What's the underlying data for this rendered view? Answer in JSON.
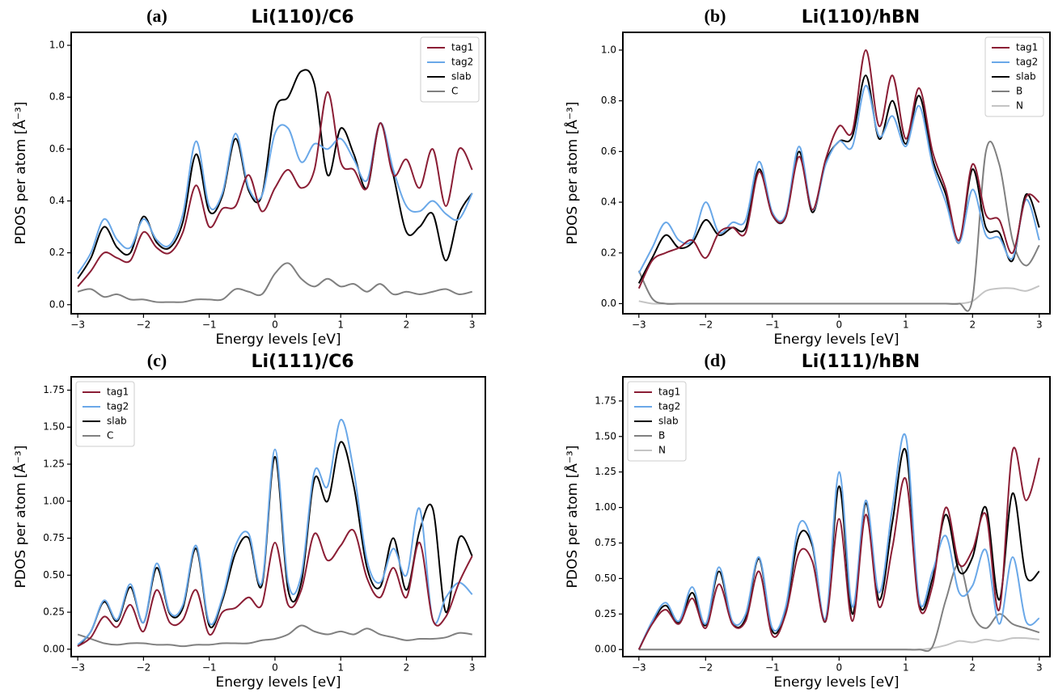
{
  "chart_data": [
    {
      "type": "line",
      "label": "(a)",
      "title": "Li(110)/C6",
      "x_label": "Energy levels [eV]",
      "y_label": "PDOS per atom [Å⁻³]",
      "legend": "upper right",
      "x": [
        -3,
        -2.8,
        -2.6,
        -2.4,
        -2.2,
        -2,
        -1.8,
        -1.6,
        -1.4,
        -1.2,
        -1,
        -0.8,
        -0.6,
        -0.4,
        -0.2,
        0,
        0.2,
        0.4,
        0.6,
        0.8,
        1,
        1.2,
        1.4,
        1.6,
        1.8,
        2,
        2.2,
        2.4,
        2.6,
        2.8,
        3
      ],
      "xlim": [
        -3.1,
        3.2
      ],
      "xticks": [
        {
          "value": -3,
          "label": "−3"
        },
        {
          "value": -2,
          "label": "−2"
        },
        {
          "value": -1,
          "label": "−1"
        },
        0,
        1,
        2,
        3
      ],
      "ylim": [
        -0.035,
        1.05
      ],
      "yticks": [
        {
          "value": 0,
          "label": "0.0"
        },
        0.2,
        0.4,
        0.6,
        0.8,
        {
          "value": 1,
          "label": "1.0"
        }
      ],
      "series": [
        {
          "name": "tag1",
          "color": "#8b1e35",
          "values": [
            0.07,
            0.13,
            0.2,
            0.18,
            0.17,
            0.28,
            0.22,
            0.2,
            0.28,
            0.46,
            0.3,
            0.37,
            0.38,
            0.5,
            0.36,
            0.45,
            0.52,
            0.45,
            0.52,
            0.82,
            0.55,
            0.52,
            0.45,
            0.7,
            0.5,
            0.56,
            0.45,
            0.6,
            0.38,
            0.6,
            0.52
          ]
        },
        {
          "name": "tag2",
          "color": "#6aa8e8",
          "values": [
            0.12,
            0.2,
            0.33,
            0.25,
            0.22,
            0.33,
            0.25,
            0.23,
            0.35,
            0.63,
            0.38,
            0.43,
            0.66,
            0.45,
            0.42,
            0.66,
            0.68,
            0.55,
            0.62,
            0.6,
            0.64,
            0.56,
            0.48,
            0.7,
            0.52,
            0.38,
            0.36,
            0.4,
            0.35,
            0.33,
            0.43
          ]
        },
        {
          "name": "slab",
          "color": "#000000",
          "values": [
            0.1,
            0.18,
            0.3,
            0.22,
            0.2,
            0.34,
            0.24,
            0.22,
            0.32,
            0.58,
            0.36,
            0.42,
            0.64,
            0.44,
            0.42,
            0.75,
            0.8,
            0.9,
            0.85,
            0.5,
            0.68,
            0.58,
            0.45,
            0.7,
            0.5,
            0.28,
            0.3,
            0.35,
            0.17,
            0.35,
            0.43
          ]
        },
        {
          "name": "C",
          "color": "#808080",
          "values": [
            0.05,
            0.06,
            0.03,
            0.04,
            0.02,
            0.02,
            0.01,
            0.01,
            0.01,
            0.02,
            0.02,
            0.02,
            0.06,
            0.05,
            0.04,
            0.12,
            0.16,
            0.1,
            0.07,
            0.1,
            0.07,
            0.08,
            0.05,
            0.08,
            0.04,
            0.05,
            0.04,
            0.05,
            0.06,
            0.04,
            0.05
          ]
        }
      ]
    },
    {
      "type": "line",
      "label": "(b)",
      "title": "Li(110)/hBN",
      "x_label": "Energy levels [eV]",
      "y_label": "PDOS per atom [Å⁻³]",
      "legend": "upper right",
      "x": [
        -3,
        -2.8,
        -2.6,
        -2.4,
        -2.2,
        -2,
        -1.8,
        -1.6,
        -1.4,
        -1.2,
        -1,
        -0.8,
        -0.6,
        -0.4,
        -0.2,
        0,
        0.2,
        0.4,
        0.6,
        0.8,
        1,
        1.2,
        1.4,
        1.6,
        1.8,
        2,
        2.2,
        2.4,
        2.6,
        2.8,
        3
      ],
      "xlim": [
        -3.24,
        3.16
      ],
      "xticks": [
        {
          "value": -3,
          "label": "−3"
        },
        {
          "value": -2,
          "label": "−2"
        },
        {
          "value": -1,
          "label": "−1"
        },
        0,
        1,
        2,
        3
      ],
      "ylim": [
        -0.04,
        1.07
      ],
      "yticks": [
        {
          "value": 0,
          "label": "0.0"
        },
        0.2,
        0.4,
        0.6,
        0.8,
        {
          "value": 1,
          "label": "1.0"
        }
      ],
      "series": [
        {
          "name": "tag1",
          "color": "#8b1e35",
          "values": [
            0.06,
            0.17,
            0.2,
            0.22,
            0.25,
            0.18,
            0.28,
            0.3,
            0.28,
            0.52,
            0.35,
            0.34,
            0.58,
            0.37,
            0.57,
            0.7,
            0.68,
            1.0,
            0.7,
            0.9,
            0.65,
            0.85,
            0.6,
            0.45,
            0.25,
            0.55,
            0.35,
            0.33,
            0.2,
            0.42,
            0.4
          ]
        },
        {
          "name": "tag2",
          "color": "#6aa8e8",
          "values": [
            0.12,
            0.22,
            0.32,
            0.25,
            0.25,
            0.4,
            0.28,
            0.32,
            0.33,
            0.56,
            0.36,
            0.35,
            0.62,
            0.37,
            0.55,
            0.64,
            0.62,
            0.86,
            0.66,
            0.74,
            0.62,
            0.78,
            0.55,
            0.4,
            0.24,
            0.45,
            0.27,
            0.26,
            0.18,
            0.41,
            0.25
          ]
        },
        {
          "name": "slab",
          "color": "#000000",
          "values": [
            0.08,
            0.18,
            0.27,
            0.22,
            0.24,
            0.33,
            0.27,
            0.3,
            0.3,
            0.53,
            0.35,
            0.34,
            0.6,
            0.36,
            0.56,
            0.64,
            0.66,
            0.9,
            0.65,
            0.8,
            0.63,
            0.82,
            0.57,
            0.43,
            0.24,
            0.53,
            0.3,
            0.28,
            0.17,
            0.43,
            0.3
          ]
        },
        {
          "name": "B",
          "color": "#808080",
          "values": [
            0.13,
            0.02,
            0,
            0,
            0,
            0,
            0,
            0,
            0,
            0,
            0,
            0,
            0,
            0,
            0,
            0,
            0,
            0,
            0,
            0,
            0,
            0,
            0,
            0,
            0,
            0.02,
            0.6,
            0.55,
            0.25,
            0.15,
            0.23
          ]
        },
        {
          "name": "N",
          "color": "#c4c4c4",
          "values": [
            0.01,
            0,
            0,
            0,
            0,
            0,
            0,
            0,
            0,
            0,
            0,
            0,
            0,
            0,
            0,
            0,
            0,
            0,
            0,
            0,
            0,
            0,
            0,
            0,
            0,
            0.01,
            0.05,
            0.06,
            0.06,
            0.05,
            0.07
          ]
        }
      ]
    },
    {
      "type": "line",
      "label": "(c)",
      "title": "Li(111)/C6",
      "x_label": "Energy levels [eV]",
      "y_label": "PDOS per atom [Å⁻³]",
      "legend": "upper left",
      "x": [
        -3,
        -2.8,
        -2.6,
        -2.4,
        -2.2,
        -2,
        -1.8,
        -1.6,
        -1.4,
        -1.2,
        -1,
        -0.8,
        -0.6,
        -0.4,
        -0.2,
        0,
        0.2,
        0.4,
        0.6,
        0.8,
        1,
        1.2,
        1.4,
        1.6,
        1.8,
        2,
        2.2,
        2.4,
        2.6,
        2.8,
        3
      ],
      "xlim": [
        -3.1,
        3.2
      ],
      "xticks": [
        {
          "value": -3,
          "label": "−3"
        },
        {
          "value": -2,
          "label": "−2"
        },
        {
          "value": -1,
          "label": "−1"
        },
        0,
        1,
        2,
        3
      ],
      "ylim": [
        -0.05,
        1.84
      ],
      "yticks": [
        {
          "value": 0,
          "label": "0.00"
        },
        0.25,
        {
          "value": 0.5,
          "label": "0.50"
        },
        0.75,
        {
          "value": 1,
          "label": "1.00"
        },
        1.25,
        {
          "value": 1.5,
          "label": "1.50"
        },
        1.75
      ],
      "series": [
        {
          "name": "tag1",
          "color": "#8b1e35",
          "values": [
            0.02,
            0.08,
            0.22,
            0.15,
            0.3,
            0.12,
            0.4,
            0.18,
            0.2,
            0.4,
            0.1,
            0.25,
            0.28,
            0.35,
            0.3,
            0.72,
            0.3,
            0.4,
            0.78,
            0.6,
            0.7,
            0.8,
            0.48,
            0.35,
            0.55,
            0.35,
            0.72,
            0.2,
            0.22,
            0.45,
            0.63
          ]
        },
        {
          "name": "tag2",
          "color": "#6aa8e8",
          "values": [
            0.03,
            0.12,
            0.33,
            0.2,
            0.44,
            0.18,
            0.58,
            0.25,
            0.3,
            0.7,
            0.18,
            0.35,
            0.7,
            0.78,
            0.45,
            1.35,
            0.45,
            0.5,
            1.2,
            1.1,
            1.55,
            1.2,
            0.6,
            0.45,
            0.68,
            0.5,
            0.95,
            0.2,
            0.35,
            0.45,
            0.37
          ]
        },
        {
          "name": "slab",
          "color": "#000000",
          "values": [
            0.02,
            0.12,
            0.32,
            0.19,
            0.42,
            0.18,
            0.55,
            0.24,
            0.28,
            0.68,
            0.16,
            0.33,
            0.65,
            0.75,
            0.43,
            1.3,
            0.4,
            0.45,
            1.15,
            1.0,
            1.4,
            1.1,
            0.55,
            0.42,
            0.75,
            0.4,
            0.8,
            0.95,
            0.25,
            0.75,
            0.63
          ]
        },
        {
          "name": "C",
          "color": "#808080",
          "values": [
            0.1,
            0.07,
            0.04,
            0.03,
            0.04,
            0.04,
            0.03,
            0.03,
            0.02,
            0.03,
            0.03,
            0.04,
            0.04,
            0.04,
            0.06,
            0.07,
            0.1,
            0.16,
            0.12,
            0.1,
            0.12,
            0.1,
            0.14,
            0.1,
            0.08,
            0.06,
            0.07,
            0.07,
            0.08,
            0.11,
            0.1
          ]
        }
      ]
    },
    {
      "type": "line",
      "label": "(d)",
      "title": "Li(111)/hBN",
      "x_label": "Energy levels [eV]",
      "y_label": "PDOS per atom [Å⁻³]",
      "legend": "upper left",
      "x": [
        -3,
        -2.8,
        -2.6,
        -2.4,
        -2.2,
        -2,
        -1.8,
        -1.6,
        -1.4,
        -1.2,
        -1,
        -0.8,
        -0.6,
        -0.4,
        -0.2,
        0,
        0.2,
        0.4,
        0.6,
        0.8,
        1,
        1.2,
        1.4,
        1.6,
        1.8,
        2,
        2.2,
        2.4,
        2.6,
        2.8,
        3
      ],
      "xlim": [
        -3.24,
        3.16
      ],
      "xticks": [
        {
          "value": -3,
          "label": "−3"
        },
        {
          "value": -2,
          "label": "−2"
        },
        {
          "value": -1,
          "label": "−1"
        },
        0,
        1,
        2,
        3
      ],
      "ylim": [
        -0.05,
        1.92
      ],
      "yticks": [
        {
          "value": 0,
          "label": "0.00"
        },
        0.25,
        {
          "value": 0.5,
          "label": "0.50"
        },
        0.75,
        {
          "value": 1,
          "label": "1.00"
        },
        1.25,
        {
          "value": 1.5,
          "label": "1.50"
        },
        1.75
      ],
      "series": [
        {
          "name": "tag1",
          "color": "#8b1e35",
          "values": [
            0,
            0.18,
            0.28,
            0.18,
            0.36,
            0.15,
            0.46,
            0.18,
            0.2,
            0.55,
            0.1,
            0.25,
            0.68,
            0.62,
            0.2,
            0.92,
            0.2,
            0.95,
            0.3,
            0.72,
            1.2,
            0.3,
            0.45,
            1.0,
            0.6,
            0.7,
            0.95,
            0.28,
            1.4,
            1.05,
            1.35
          ]
        },
        {
          "name": "tag2",
          "color": "#6aa8e8",
          "values": [
            0,
            0.2,
            0.33,
            0.2,
            0.44,
            0.18,
            0.58,
            0.2,
            0.25,
            0.65,
            0.15,
            0.3,
            0.88,
            0.75,
            0.22,
            1.25,
            0.3,
            1.05,
            0.4,
            1.0,
            1.5,
            0.35,
            0.55,
            0.8,
            0.4,
            0.45,
            0.7,
            0.18,
            0.65,
            0.2,
            0.22
          ]
        },
        {
          "name": "slab",
          "color": "#000000",
          "values": [
            0,
            0.19,
            0.31,
            0.19,
            0.4,
            0.17,
            0.55,
            0.19,
            0.22,
            0.64,
            0.13,
            0.28,
            0.8,
            0.73,
            0.2,
            1.15,
            0.25,
            1.03,
            0.35,
            0.9,
            1.4,
            0.33,
            0.5,
            0.95,
            0.55,
            0.65,
            1.0,
            0.35,
            1.1,
            0.52,
            0.55
          ]
        },
        {
          "name": "B",
          "color": "#808080",
          "values": [
            0,
            0,
            0,
            0,
            0,
            0,
            0,
            0,
            0,
            0,
            0,
            0,
            0,
            0,
            0,
            0,
            0,
            0,
            0,
            0,
            0,
            0,
            0.02,
            0.35,
            0.6,
            0.25,
            0.15,
            0.25,
            0.18,
            0.15,
            0.12
          ]
        },
        {
          "name": "N",
          "color": "#c4c4c4",
          "values": [
            0,
            0,
            0,
            0,
            0,
            0,
            0,
            0,
            0,
            0,
            0,
            0,
            0,
            0,
            0,
            0,
            0,
            0,
            0,
            0,
            0,
            0,
            0.01,
            0.03,
            0.06,
            0.05,
            0.07,
            0.06,
            0.08,
            0.08,
            0.07
          ]
        }
      ]
    }
  ]
}
